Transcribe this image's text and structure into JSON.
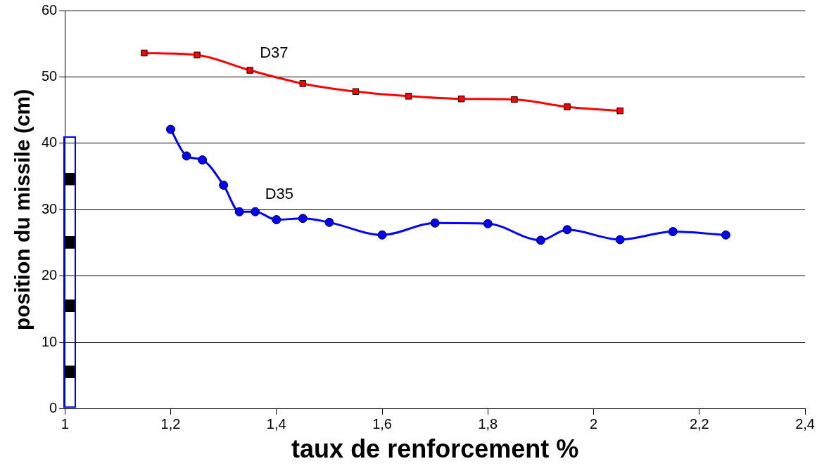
{
  "chart_data": {
    "type": "line",
    "xlabel": "taux de renforcement %",
    "ylabel": "position du missile (cm)",
    "xlim": [
      1,
      2.4
    ],
    "xticks": [
      1,
      {
        "value": 1.2,
        "label": "1,2"
      },
      {
        "value": 1.4,
        "label": "1,4"
      },
      {
        "value": 1.6,
        "label": "1,6"
      },
      {
        "value": 1.8,
        "label": "1,8"
      },
      2,
      {
        "value": 2.2,
        "label": "2,2"
      },
      {
        "value": 2.4,
        "label": "2,4"
      }
    ],
    "ylim": [
      0,
      60
    ],
    "yticks": [
      0,
      10,
      20,
      30,
      40,
      50,
      60
    ],
    "grid": "y",
    "legend": false,
    "series": [
      {
        "name": "D37",
        "color": "#ff0000",
        "marker": "square",
        "x": [
          1.15,
          1.25,
          1.35,
          1.45,
          1.55,
          1.65,
          1.75,
          1.85,
          1.95,
          2.05
        ],
        "values": [
          53.6,
          53.3,
          51.0,
          49.0,
          47.8,
          47.1,
          46.7,
          46.6,
          45.5,
          44.9
        ]
      },
      {
        "name": "D35",
        "color": "#0000ff",
        "marker": "circle",
        "x": [
          1.2,
          1.23,
          1.26,
          1.3,
          1.33,
          1.36,
          1.4,
          1.45,
          1.5,
          1.6,
          1.7,
          1.8,
          1.9,
          1.95,
          2.05,
          2.15,
          2.25
        ],
        "values": [
          42.1,
          38.1,
          37.5,
          33.7,
          29.7,
          29.7,
          28.5,
          28.7,
          28.1,
          26.2,
          28.0,
          27.9,
          25.4,
          27.0,
          25.5,
          26.7,
          26.2
        ]
      }
    ]
  }
}
